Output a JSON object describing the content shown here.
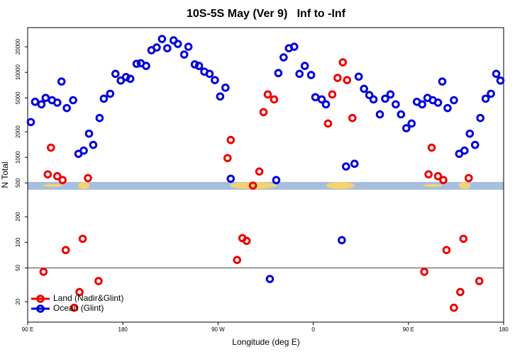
{
  "chart_data": {
    "type": "scatter",
    "title": "10S-5S May (Ver 9)   Inf to -Inf",
    "x_label": "Longitude (deg E)",
    "y_label": "N Total",
    "log_y": true,
    "legend": "bottom-left",
    "reference_line": 50,
    "xlim": [
      90,
      540
    ],
    "xticks": [
      {
        "value": 90,
        "label": "90 E"
      },
      180,
      {
        "value": 270,
        "label": "90 W"
      },
      {
        "value": 360,
        "label": "0"
      },
      {
        "value": 450,
        "label": "90 E"
      },
      {
        "value": 540,
        "label": "180"
      }
    ],
    "ylim": [
      11.5,
      33600
    ],
    "yticks": [
      20,
      50,
      100,
      200,
      500,
      1000,
      2000,
      5000,
      10000,
      20000
    ],
    "series": [
      {
        "name": "Land (Nadir&Glint)",
        "color": "#ee0000",
        "x": [
          105,
          109,
          112,
          118,
          123,
          126,
          134,
          139,
          142,
          147,
          157,
          279,
          282,
          288,
          293,
          297,
          303,
          309,
          313,
          317,
          323,
          374,
          378,
          383,
          388,
          392,
          397,
          465,
          469,
          472,
          478,
          483,
          486,
          493,
          499,
          502,
          507,
          517
        ],
        "values": [
          45,
          630,
          1300,
          600,
          540,
          81,
          17,
          26,
          110,
          570,
          35,
          980,
          1600,
          62,
          112,
          104,
          465,
          680,
          3400,
          5500,
          4800,
          2500,
          5500,
          8600,
          13100,
          8100,
          2900,
          45,
          630,
          1300,
          600,
          540,
          81,
          17,
          26,
          110,
          570,
          35
        ]
      },
      {
        "name": "Ocean (Glint)",
        "color": "#0000dd",
        "x": [
          93,
          97,
          103,
          107,
          113,
          118,
          122,
          127,
          133,
          138,
          143,
          148,
          152,
          158,
          162,
          168,
          173,
          178,
          183,
          187,
          193,
          197,
          202,
          207,
          212,
          217,
          222,
          228,
          232,
          238,
          242,
          248,
          252,
          257,
          262,
          267,
          272,
          277,
          282,
          319,
          325,
          327,
          332,
          337,
          342,
          347,
          352,
          358,
          362,
          368,
          372,
          387,
          391,
          399,
          403,
          408,
          413,
          417,
          423,
          428,
          433,
          438,
          443,
          448,
          453,
          458,
          463,
          468,
          473,
          478,
          482,
          487,
          493,
          498,
          503,
          508,
          513,
          518,
          523,
          528,
          533,
          537
        ],
        "values": [
          2600,
          4500,
          4200,
          5000,
          4700,
          4400,
          7800,
          3800,
          4700,
          1100,
          1200,
          1900,
          1400,
          2900,
          4900,
          5600,
          9600,
          8000,
          8800,
          8400,
          12600,
          12800,
          11900,
          18200,
          19600,
          24700,
          19200,
          23800,
          21600,
          16200,
          20000,
          12400,
          11900,
          10200,
          9600,
          8100,
          5200,
          6600,
          560,
          37,
          540,
          9800,
          15000,
          19200,
          20000,
          9600,
          11900,
          9300,
          5100,
          4800,
          4200,
          106,
          780,
          840,
          8900,
          6400,
          5400,
          4800,
          3200,
          4900,
          5500,
          4200,
          3200,
          2200,
          2500,
          4500,
          4200,
          5000,
          4700,
          4400,
          7800,
          3800,
          4700,
          1100,
          1200,
          1900,
          1400,
          2900,
          4900,
          5600,
          9600,
          8000
        ]
      }
    ]
  }
}
